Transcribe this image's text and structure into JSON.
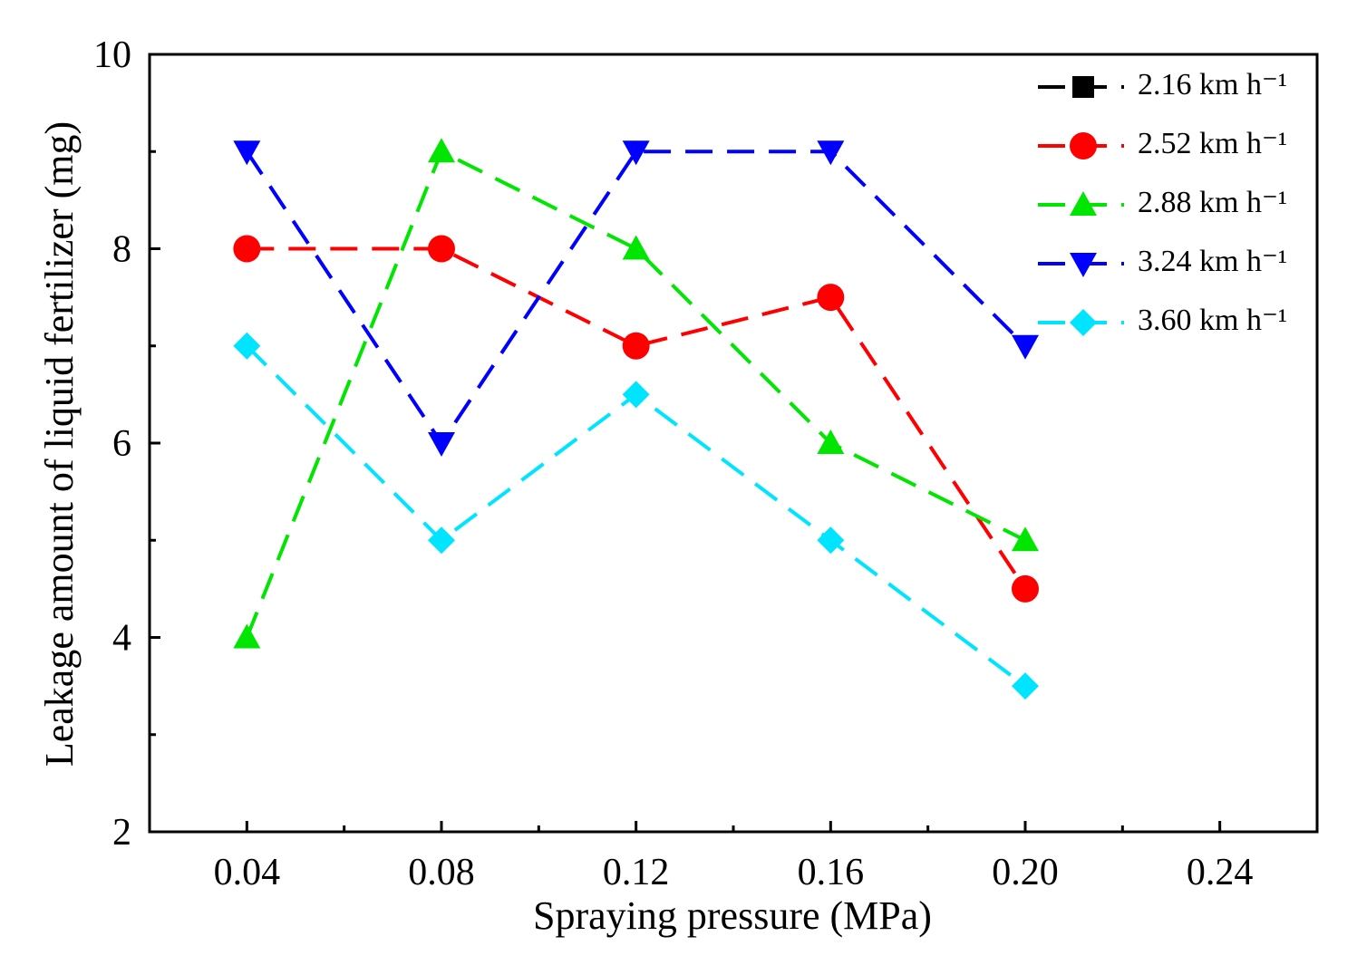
{
  "chart_data": {
    "type": "line",
    "x_label": "Spraying pressure (MPa)",
    "y_label": "Leakage amount of liquid fertilizer (mg)",
    "x": [
      0.04,
      0.08,
      0.12,
      0.16,
      {
        "value": 0.2,
        "label": "0.20"
      }
    ],
    "xlim": [
      0.02,
      0.26
    ],
    "xticks": [
      0.04,
      0.08,
      0.12,
      0.16,
      {
        "value": 0.2,
        "label": "0.20"
      },
      0.24
    ],
    "xminorticks": [
      0.06,
      0.1,
      0.14,
      0.18,
      0.22
    ],
    "ylim": [
      2,
      10
    ],
    "yticks": [
      2,
      4,
      6,
      8,
      10
    ],
    "yminorticks": [
      3,
      5,
      7,
      9
    ],
    "legend": "upper right",
    "series": [
      {
        "name": "2.16 km h⁻¹",
        "color": "#000000",
        "marker": "square",
        "values": [
          null,
          null,
          null,
          null,
          null
        ]
      },
      {
        "name": "2.52 km h⁻¹",
        "color": "#ff0000",
        "marker": "circle",
        "values": [
          8,
          8,
          7,
          7.5,
          4.5
        ]
      },
      {
        "name": "2.88 km h⁻¹",
        "color": "#00e600",
        "marker": "triangle-up",
        "values": [
          4,
          9,
          8,
          6,
          5
        ]
      },
      {
        "name": "3.24 km h⁻¹",
        "color": "#0000ff",
        "marker": "triangle-down",
        "values": [
          9,
          6,
          9,
          9,
          7
        ]
      },
      {
        "name": "3.60 km h⁻¹",
        "color": "#00e5ff",
        "marker": "diamond",
        "values": [
          7,
          5,
          6.5,
          5,
          3.5
        ]
      }
    ]
  }
}
